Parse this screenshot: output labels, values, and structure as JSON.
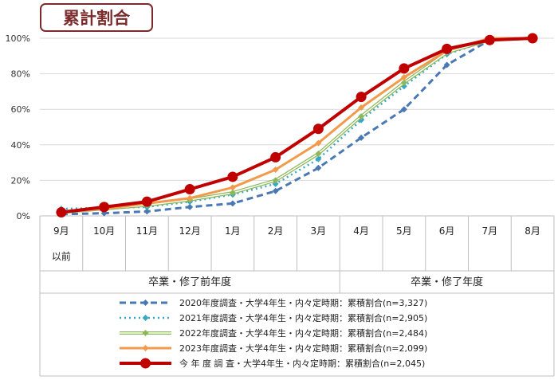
{
  "chart_data": {
    "type": "line",
    "title": "累計割合",
    "categories": [
      "9月",
      "10月",
      "11月",
      "12月",
      "1月",
      "2月",
      "3月",
      "4月",
      "5月",
      "6月",
      "7月",
      "8月"
    ],
    "sub_label": "以前",
    "groups": [
      {
        "label": "卒業・修了前年度",
        "from": 0,
        "to": 6
      },
      {
        "label": "卒業・修了年度",
        "from": 7,
        "to": 11
      }
    ],
    "ylim": [
      0,
      100
    ],
    "yticks": [
      "0%",
      "20%",
      "40%",
      "60%",
      "80%",
      "100%"
    ],
    "grid": true,
    "legend_position": "bottom",
    "series": [
      {
        "name": "2020年度調査・大学4年生・内々定時期：累積割合(n=3,327)",
        "color": "#4a78b5",
        "values": [
          1,
          1.5,
          2.5,
          5,
          7,
          14,
          27,
          44,
          60,
          85,
          99,
          100
        ]
      },
      {
        "name": "2021年度調査・大学4年生・内々定時期：累積割合(n=2,905)",
        "color": "#3aa8c2",
        "values": [
          4,
          4.5,
          5,
          8,
          12,
          18,
          32,
          54,
          73,
          91,
          99,
          100
        ]
      },
      {
        "name": "2022年度調査・大学4年生・内々定時期：累積割合(n=2,484)",
        "color": "#8db85a",
        "values": [
          2,
          4,
          6,
          9,
          13,
          20,
          35,
          56,
          75,
          92,
          99,
          100
        ]
      },
      {
        "name": "2023年度調査・大学4年生・内々定時期：累積割合(n=2,099)",
        "color": "#f29a4c",
        "values": [
          2,
          4,
          7,
          10,
          16,
          26,
          41,
          61,
          78,
          93,
          100,
          100
        ]
      },
      {
        "name": "今 年 度 調 査・大学4年生・内々定時期：累積割合(n=2,045)",
        "color": "#c00000",
        "values": [
          2,
          5,
          8,
          15,
          22,
          33,
          49,
          67,
          83,
          94,
          99,
          100
        ]
      }
    ]
  }
}
